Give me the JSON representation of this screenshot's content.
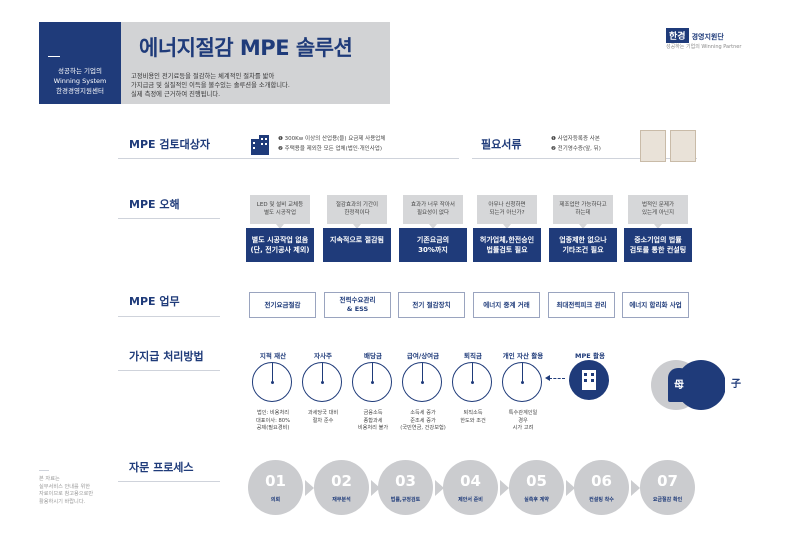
{
  "sidebar": {
    "line1": "성공하는 기업의",
    "line2": "Winning System",
    "line3": "한경경영지원센터"
  },
  "header": {
    "title": "에너지절감 MPE 솔루션",
    "desc1": "고정비용인 전기료등을  절감하는 체계적인 절차를 밟아",
    "desc2": "가지급금 및 실질적인 이득을 볼수있는 솔루션을 소개합니다.",
    "desc3": "실제 측정에 근거하여 진행됩니다."
  },
  "logo": {
    "han": "한경",
    "name": "경영지원단",
    "sub": "성공하는 기업의 Winning Partner"
  },
  "targets": {
    "title": "MPE 검토대상자",
    "item1": "❶ 300Kw 이상의 산업용(을) 요금제 사용업체",
    "item2": "❷ 주택용을 제외한 모든 업체(법인·개인사업)"
  },
  "docs": {
    "title": "필요서류",
    "item1": "❶ 사업자등록증 사본",
    "item2": "❷ 전기영수증(앞, 뒤)"
  },
  "misconceptions": {
    "title": "MPE 오해",
    "items": [
      {
        "q1": "LED 및 설비 교체등",
        "q2": "별도 시공작업",
        "a1": "별도 시공작업 없음",
        "a2": "(단, 전기공사 제외)"
      },
      {
        "q1": "절감효과의 기간이",
        "q2": "한정적이다",
        "a1": "지속적으로 절감됨",
        "a2": ""
      },
      {
        "q1": "효과가 너무 작아서",
        "q2": "필요성이 없다",
        "a1": "기존요금의",
        "a2": "30%까지"
      },
      {
        "q1": "아무나 신청하면",
        "q2": "되는거 아닌가?",
        "a1": "허가업체,한전승인",
        "a2": "법률검토 필요"
      },
      {
        "q1": "제조업만 가능하다고",
        "q2": "하는데",
        "a1": "업종제한 없으나",
        "a2": "기타조건 필요"
      },
      {
        "q1": "법적인 문제가",
        "q2": "있는게 아닌지",
        "a1": "중소기업의 법률",
        "a2": "검토를 통한 컨설팅"
      }
    ]
  },
  "tasks": {
    "title": "MPE 업무",
    "items": [
      {
        "l1": "전기요금절감",
        "l2": ""
      },
      {
        "l1": "전력수요관리",
        "l2": "& ESS"
      },
      {
        "l1": "전기 절감장치",
        "l2": ""
      },
      {
        "l1": "에너지 중계 거래",
        "l2": ""
      },
      {
        "l1": "최대전력피크 관리",
        "l2": ""
      },
      {
        "l1": "에너지 합리화 사업",
        "l2": ""
      }
    ]
  },
  "methods": {
    "title": "가지급 처리방법",
    "items": [
      {
        "name": "지적 재산",
        "d1": "법인: 비용처리",
        "d2": "대표이사: 80%",
        "d3": "공제(필요경비)"
      },
      {
        "name": "자사주",
        "d1": "과세당국 대비",
        "d2": "절차 준수",
        "d3": ""
      },
      {
        "name": "배당금",
        "d1": "금융소득",
        "d2": "종합과세",
        "d3": "비용처리 불가"
      },
      {
        "name": "급여/상여금",
        "d1": "소득세 증가",
        "d2": "준조세 증가",
        "d3": "(국민연금, 건강보험)"
      },
      {
        "name": "퇴직금",
        "d1": "퇴직소득",
        "d2": "한도와 조건",
        "d3": ""
      },
      {
        "name": "개인 자산 활용",
        "d1": "특수관계인일",
        "d2": "경우",
        "d3": "시가 고려"
      }
    ],
    "mpe_label": "MPE 활용",
    "mother": "母",
    "child": "子"
  },
  "process": {
    "title": "자문 프로세스",
    "steps": [
      {
        "num": "01",
        "label": "의뢰"
      },
      {
        "num": "02",
        "label": "재무분석"
      },
      {
        "num": "03",
        "label": "법률,규정검토"
      },
      {
        "num": "04",
        "label": "제안서 준비"
      },
      {
        "num": "05",
        "label": "실측후 계약"
      },
      {
        "num": "06",
        "label": "컨설팅 착수"
      },
      {
        "num": "07",
        "label": "요금절감 확인"
      }
    ]
  },
  "footnote": {
    "l1": "본 자료는",
    "l2": "실무서비스 안내를 위한",
    "l3": "자료이므로 참고용으로만",
    "l4": "활용하시기 바랍니다."
  }
}
